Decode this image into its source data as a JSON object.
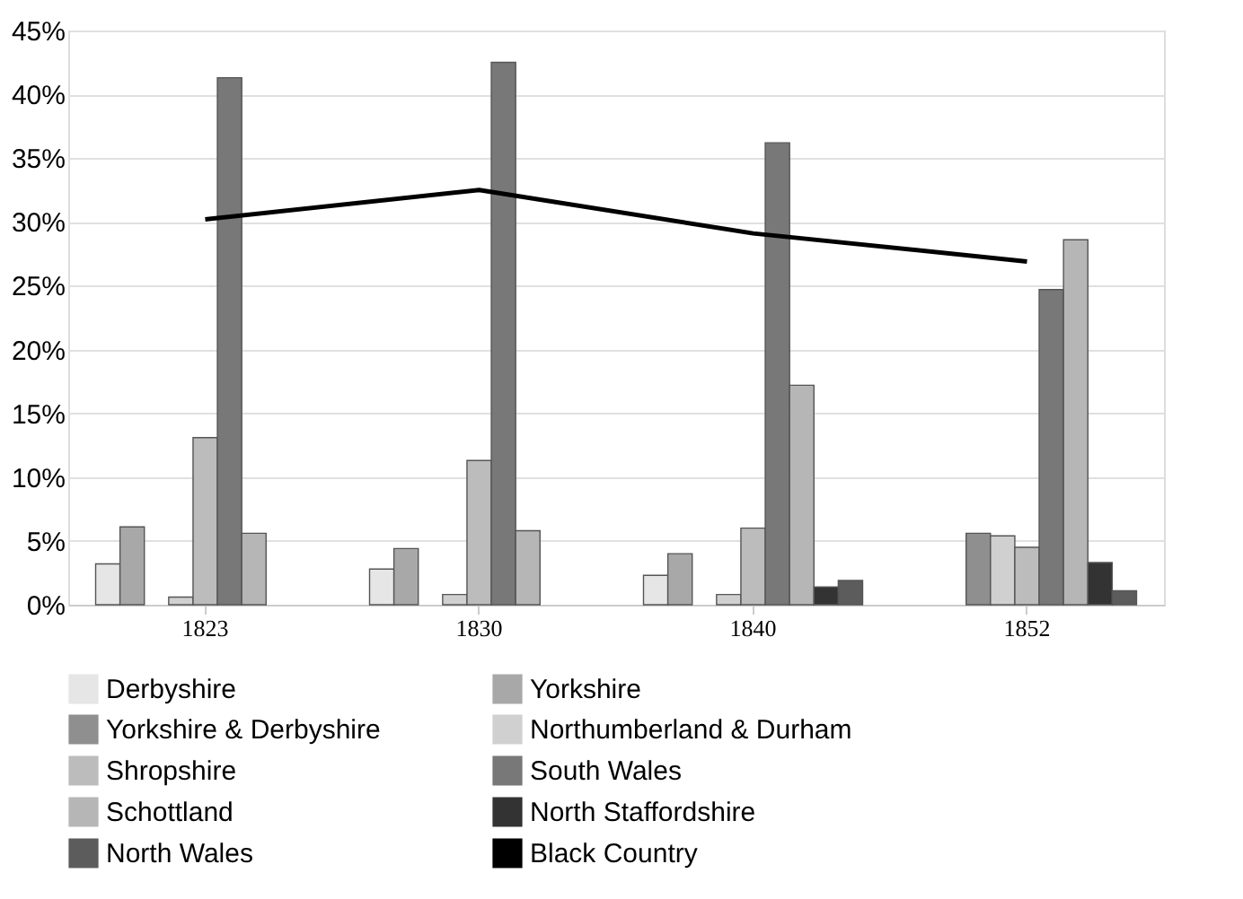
{
  "chart_data": {
    "type": "bar",
    "categories": [
      "1823",
      "1830",
      "1840",
      "1852"
    ],
    "ylim": [
      0,
      45
    ],
    "yticks": [
      {
        "value": 0,
        "label": "0%"
      },
      {
        "value": 5,
        "label": "5%"
      },
      {
        "value": 10,
        "label": "10%"
      },
      {
        "value": 15,
        "label": "15%"
      },
      {
        "value": 20,
        "label": "20%"
      },
      {
        "value": 25,
        "label": "25%"
      },
      {
        "value": 30,
        "label": "30%"
      },
      {
        "value": 35,
        "label": "35%"
      },
      {
        "value": 40,
        "label": "40%"
      },
      {
        "value": 45,
        "label": "45%"
      }
    ],
    "grid": "y",
    "legend": "bottom",
    "series": [
      {
        "name": "Derbyshire",
        "color": "#e6e6e6",
        "values": [
          3.2,
          2.8,
          2.3,
          null
        ]
      },
      {
        "name": "Yorkshire",
        "color": "#a8a8a8",
        "values": [
          6.1,
          4.4,
          4.0,
          null
        ]
      },
      {
        "name": "Yorkshire & Derbyshire",
        "color": "#8f8f8f",
        "values": [
          null,
          null,
          null,
          5.6
        ]
      },
      {
        "name": "Northumberland & Durham",
        "color": "#d0d0d0",
        "values": [
          0.6,
          0.8,
          0.8,
          5.4
        ]
      },
      {
        "name": "Shropshire",
        "color": "#bcbcbc",
        "values": [
          13.1,
          11.3,
          6.0,
          4.5
        ]
      },
      {
        "name": "South Wales",
        "color": "#787878",
        "values": [
          41.3,
          42.5,
          36.2,
          24.7
        ]
      },
      {
        "name": "Schottland",
        "color": "#b6b6b6",
        "values": [
          5.6,
          5.8,
          17.2,
          28.6
        ]
      },
      {
        "name": "North Staffordshire",
        "color": "#333333",
        "values": [
          null,
          null,
          1.4,
          3.3
        ]
      },
      {
        "name": "North Wales",
        "color": "#5c5c5c",
        "values": [
          null,
          null,
          1.9,
          1.1
        ]
      },
      {
        "name": "Black Country",
        "color": "#000000",
        "type": "line",
        "values": [
          30.2,
          32.5,
          29.1,
          26.9
        ]
      }
    ]
  }
}
